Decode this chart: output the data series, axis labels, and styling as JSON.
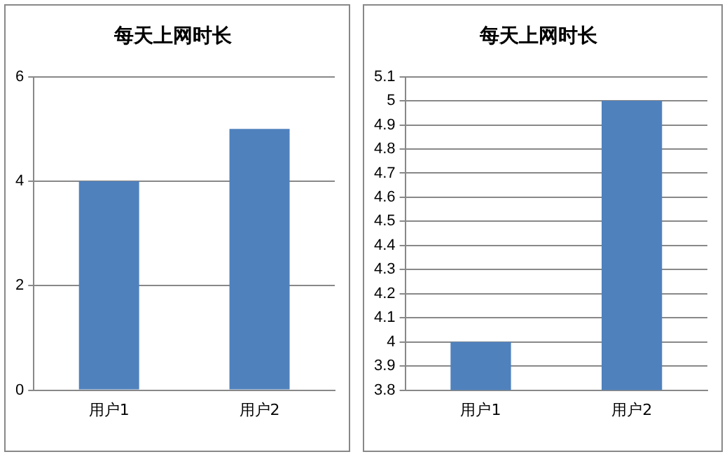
{
  "chart_data": [
    {
      "type": "bar",
      "title": "每天上网时长",
      "categories": [
        "用户1",
        "用户2"
      ],
      "values": [
        4,
        5
      ],
      "color": "#4f81bd",
      "ylim": [
        0,
        6
      ],
      "yticks": [
        0,
        2,
        4,
        6
      ],
      "grid": "y"
    },
    {
      "type": "bar",
      "title": "每天上网时长",
      "categories": [
        "用户1",
        "用户2"
      ],
      "values": [
        4,
        5
      ],
      "color": "#4f81bd",
      "ylim": [
        3.8,
        5.1
      ],
      "yticks": [
        3.8,
        3.9,
        4,
        4.1,
        4.2,
        4.3,
        4.4,
        4.5,
        4.6,
        4.7,
        4.8,
        4.9,
        5,
        5.1
      ],
      "grid": "y"
    }
  ]
}
